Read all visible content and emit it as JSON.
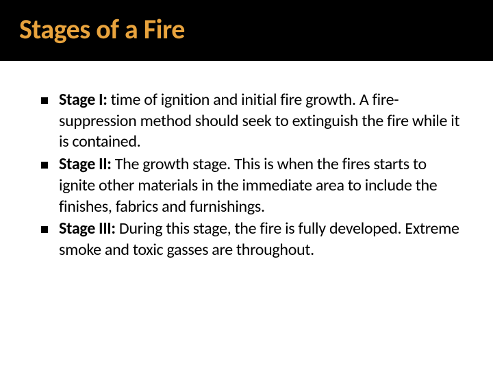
{
  "slide": {
    "title": "Stages of a Fire",
    "title_color": "#e8a33d",
    "title_bg": "#000000",
    "title_fontsize": 40,
    "body_bg": "#ffffff",
    "body_color": "#000000",
    "body_fontsize": 24,
    "bullet_color": "#000000",
    "bullets": [
      {
        "label": "Stage I:",
        "text": "  time of ignition and initial fire growth.  A fire-suppression method should seek to extinguish the fire while it is contained."
      },
      {
        "label": "Stage II:",
        "text": "  The growth stage.  This is when the fires starts to ignite other materials in the immediate area to include the finishes, fabrics and furnishings."
      },
      {
        "label": "Stage III:",
        "text": "  During this stage, the fire is fully developed.  Extreme smoke and toxic gasses are throughout."
      }
    ]
  }
}
